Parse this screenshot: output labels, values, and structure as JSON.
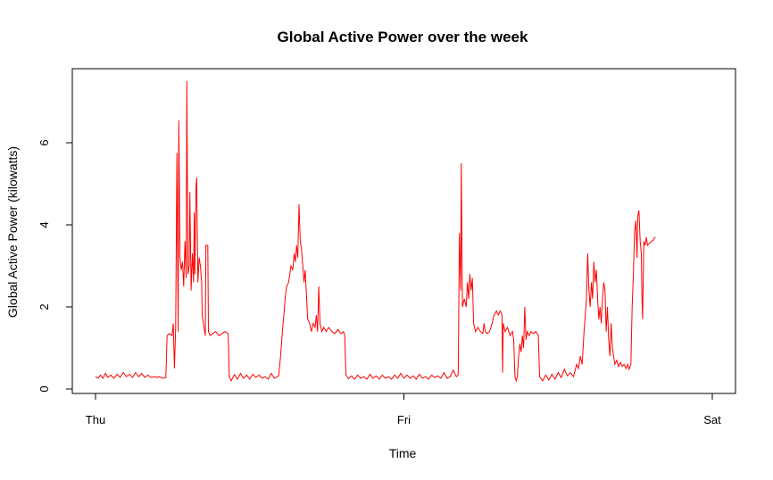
{
  "chart_data": {
    "type": "line",
    "title": "Global Active Power over the week",
    "xlabel": "Time",
    "ylabel": "Global Active Power (kilowatts)",
    "xlim": [
      0,
      2
    ],
    "ylim": [
      -0.2,
      7.7
    ],
    "x_ticks": [
      {
        "value": 0,
        "label": "Thu"
      },
      {
        "value": 1,
        "label": "Fri"
      },
      {
        "value": 2,
        "label": "Sat"
      }
    ],
    "y_ticks": [
      {
        "value": 0,
        "label": "0"
      },
      {
        "value": 2,
        "label": "2"
      },
      {
        "value": 4,
        "label": "4"
      },
      {
        "value": 6,
        "label": "6"
      }
    ],
    "grid": false,
    "legend": "none",
    "series": [
      {
        "color": "#ff0000",
        "points": [
          [
            0.0,
            0.3
          ],
          [
            0.008,
            0.26
          ],
          [
            0.016,
            0.34
          ],
          [
            0.024,
            0.26
          ],
          [
            0.032,
            0.38
          ],
          [
            0.04,
            0.28
          ],
          [
            0.05,
            0.34
          ],
          [
            0.06,
            0.26
          ],
          [
            0.07,
            0.36
          ],
          [
            0.08,
            0.28
          ],
          [
            0.09,
            0.4
          ],
          [
            0.1,
            0.3
          ],
          [
            0.11,
            0.36
          ],
          [
            0.12,
            0.28
          ],
          [
            0.13,
            0.4
          ],
          [
            0.14,
            0.3
          ],
          [
            0.15,
            0.38
          ],
          [
            0.16,
            0.28
          ],
          [
            0.17,
            0.34
          ],
          [
            0.18,
            0.28
          ],
          [
            0.19,
            0.3
          ],
          [
            0.2,
            0.28
          ],
          [
            0.205,
            0.3
          ],
          [
            0.212,
            0.28
          ],
          [
            0.22,
            0.26
          ],
          [
            0.228,
            0.28
          ],
          [
            0.232,
            1.3
          ],
          [
            0.24,
            1.35
          ],
          [
            0.248,
            1.3
          ],
          [
            0.252,
            1.6
          ],
          [
            0.256,
            0.5
          ],
          [
            0.26,
            1.5
          ],
          [
            0.264,
            5.75
          ],
          [
            0.268,
            1.4
          ],
          [
            0.27,
            6.55
          ],
          [
            0.274,
            3.2
          ],
          [
            0.278,
            2.9
          ],
          [
            0.282,
            3.1
          ],
          [
            0.286,
            2.5
          ],
          [
            0.29,
            3.6
          ],
          [
            0.294,
            2.7
          ],
          [
            0.296,
            7.5
          ],
          [
            0.3,
            2.8
          ],
          [
            0.304,
            3.0
          ],
          [
            0.306,
            4.8
          ],
          [
            0.31,
            2.4
          ],
          [
            0.314,
            3.3
          ],
          [
            0.318,
            2.6
          ],
          [
            0.32,
            4.3
          ],
          [
            0.322,
            2.8
          ],
          [
            0.326,
            4.95
          ],
          [
            0.328,
            5.15
          ],
          [
            0.332,
            2.6
          ],
          [
            0.336,
            3.2
          ],
          [
            0.34,
            3.0
          ],
          [
            0.344,
            2.6
          ],
          [
            0.346,
            1.8
          ],
          [
            0.35,
            1.6
          ],
          [
            0.354,
            1.4
          ],
          [
            0.356,
            1.3
          ],
          [
            0.358,
            3.5
          ],
          [
            0.364,
            3.5
          ],
          [
            0.366,
            1.4
          ],
          [
            0.372,
            1.3
          ],
          [
            0.38,
            1.35
          ],
          [
            0.39,
            1.4
          ],
          [
            0.4,
            1.3
          ],
          [
            0.41,
            1.35
          ],
          [
            0.42,
            1.4
          ],
          [
            0.43,
            1.35
          ],
          [
            0.434,
            0.3
          ],
          [
            0.44,
            0.2
          ],
          [
            0.45,
            0.35
          ],
          [
            0.46,
            0.24
          ],
          [
            0.47,
            0.38
          ],
          [
            0.48,
            0.26
          ],
          [
            0.49,
            0.34
          ],
          [
            0.5,
            0.24
          ],
          [
            0.51,
            0.36
          ],
          [
            0.52,
            0.28
          ],
          [
            0.53,
            0.34
          ],
          [
            0.54,
            0.26
          ],
          [
            0.55,
            0.3
          ],
          [
            0.56,
            0.24
          ],
          [
            0.57,
            0.38
          ],
          [
            0.58,
            0.26
          ],
          [
            0.594,
            0.32
          ],
          [
            0.6,
            0.8
          ],
          [
            0.604,
            1.2
          ],
          [
            0.608,
            1.6
          ],
          [
            0.612,
            1.9
          ],
          [
            0.616,
            2.3
          ],
          [
            0.62,
            2.5
          ],
          [
            0.626,
            2.6
          ],
          [
            0.63,
            2.8
          ],
          [
            0.634,
            3.0
          ],
          [
            0.64,
            2.9
          ],
          [
            0.644,
            3.3
          ],
          [
            0.648,
            3.1
          ],
          [
            0.652,
            3.5
          ],
          [
            0.656,
            3.2
          ],
          [
            0.66,
            4.5
          ],
          [
            0.664,
            3.6
          ],
          [
            0.668,
            3.4
          ],
          [
            0.672,
            3.0
          ],
          [
            0.676,
            2.6
          ],
          [
            0.68,
            2.9
          ],
          [
            0.684,
            2.3
          ],
          [
            0.688,
            1.7
          ],
          [
            0.694,
            1.6
          ],
          [
            0.7,
            1.4
          ],
          [
            0.706,
            1.6
          ],
          [
            0.712,
            1.5
          ],
          [
            0.716,
            1.8
          ],
          [
            0.72,
            1.4
          ],
          [
            0.724,
            2.5
          ],
          [
            0.728,
            1.6
          ],
          [
            0.734,
            1.4
          ],
          [
            0.74,
            1.5
          ],
          [
            0.748,
            1.4
          ],
          [
            0.756,
            1.5
          ],
          [
            0.766,
            1.4
          ],
          [
            0.776,
            1.35
          ],
          [
            0.786,
            1.45
          ],
          [
            0.796,
            1.35
          ],
          [
            0.804,
            1.4
          ],
          [
            0.808,
            1.3
          ],
          [
            0.812,
            0.35
          ],
          [
            0.82,
            0.25
          ],
          [
            0.83,
            0.32
          ],
          [
            0.84,
            0.24
          ],
          [
            0.85,
            0.34
          ],
          [
            0.86,
            0.26
          ],
          [
            0.87,
            0.3
          ],
          [
            0.88,
            0.24
          ],
          [
            0.89,
            0.36
          ],
          [
            0.9,
            0.26
          ],
          [
            0.91,
            0.32
          ],
          [
            0.92,
            0.24
          ],
          [
            0.93,
            0.34
          ],
          [
            0.94,
            0.26
          ],
          [
            0.95,
            0.3
          ],
          [
            0.96,
            0.24
          ],
          [
            0.97,
            0.34
          ],
          [
            0.98,
            0.26
          ],
          [
            0.99,
            0.38
          ],
          [
            1.0,
            0.26
          ],
          [
            1.01,
            0.34
          ],
          [
            1.02,
            0.26
          ],
          [
            1.03,
            0.32
          ],
          [
            1.04,
            0.24
          ],
          [
            1.05,
            0.36
          ],
          [
            1.06,
            0.26
          ],
          [
            1.07,
            0.3
          ],
          [
            1.08,
            0.24
          ],
          [
            1.09,
            0.34
          ],
          [
            1.1,
            0.28
          ],
          [
            1.11,
            0.32
          ],
          [
            1.12,
            0.26
          ],
          [
            1.13,
            0.4
          ],
          [
            1.14,
            0.26
          ],
          [
            1.15,
            0.3
          ],
          [
            1.16,
            0.46
          ],
          [
            1.17,
            0.3
          ],
          [
            1.176,
            0.34
          ],
          [
            1.18,
            3.8
          ],
          [
            1.184,
            2.4
          ],
          [
            1.186,
            5.5
          ],
          [
            1.19,
            2.0
          ],
          [
            1.196,
            2.2
          ],
          [
            1.202,
            2.0
          ],
          [
            1.206,
            2.6
          ],
          [
            1.21,
            2.2
          ],
          [
            1.214,
            2.8
          ],
          [
            1.218,
            2.4
          ],
          [
            1.222,
            2.7
          ],
          [
            1.226,
            1.6
          ],
          [
            1.232,
            1.4
          ],
          [
            1.24,
            1.5
          ],
          [
            1.248,
            1.4
          ],
          [
            1.256,
            1.35
          ],
          [
            1.26,
            1.6
          ],
          [
            1.264,
            1.4
          ],
          [
            1.27,
            1.35
          ],
          [
            1.278,
            1.4
          ],
          [
            1.286,
            1.6
          ],
          [
            1.292,
            1.8
          ],
          [
            1.3,
            1.9
          ],
          [
            1.306,
            1.8
          ],
          [
            1.312,
            1.9
          ],
          [
            1.318,
            1.8
          ],
          [
            1.32,
            0.4
          ],
          [
            1.322,
            1.6
          ],
          [
            1.328,
            1.4
          ],
          [
            1.336,
            1.5
          ],
          [
            1.344,
            1.3
          ],
          [
            1.352,
            1.4
          ],
          [
            1.356,
            1.2
          ],
          [
            1.36,
            0.3
          ],
          [
            1.364,
            0.2
          ],
          [
            1.368,
            0.3
          ],
          [
            1.372,
            0.8
          ],
          [
            1.376,
            1.1
          ],
          [
            1.38,
            0.9
          ],
          [
            1.384,
            1.3
          ],
          [
            1.388,
            1.0
          ],
          [
            1.392,
            2.0
          ],
          [
            1.396,
            1.2
          ],
          [
            1.4,
            1.4
          ],
          [
            1.406,
            1.3
          ],
          [
            1.412,
            1.4
          ],
          [
            1.42,
            1.35
          ],
          [
            1.428,
            1.4
          ],
          [
            1.436,
            1.3
          ],
          [
            1.44,
            0.3
          ],
          [
            1.45,
            0.2
          ],
          [
            1.46,
            0.34
          ],
          [
            1.47,
            0.22
          ],
          [
            1.48,
            0.36
          ],
          [
            1.49,
            0.24
          ],
          [
            1.5,
            0.4
          ],
          [
            1.51,
            0.28
          ],
          [
            1.52,
            0.48
          ],
          [
            1.53,
            0.32
          ],
          [
            1.54,
            0.4
          ],
          [
            1.55,
            0.3
          ],
          [
            1.56,
            0.6
          ],
          [
            1.566,
            0.5
          ],
          [
            1.572,
            0.8
          ],
          [
            1.578,
            0.6
          ],
          [
            1.584,
            1.4
          ],
          [
            1.588,
            1.8
          ],
          [
            1.592,
            2.2
          ],
          [
            1.596,
            3.3
          ],
          [
            1.6,
            2.4
          ],
          [
            1.604,
            2.0
          ],
          [
            1.608,
            2.6
          ],
          [
            1.612,
            2.2
          ],
          [
            1.616,
            3.1
          ],
          [
            1.62,
            2.6
          ],
          [
            1.624,
            2.9
          ],
          [
            1.628,
            2.2
          ],
          [
            1.632,
            1.7
          ],
          [
            1.636,
            2.0
          ],
          [
            1.64,
            1.6
          ],
          [
            1.644,
            2.2
          ],
          [
            1.648,
            2.6
          ],
          [
            1.652,
            2.4
          ],
          [
            1.656,
            1.4
          ],
          [
            1.66,
            2.0
          ],
          [
            1.664,
            1.2
          ],
          [
            1.668,
            0.8
          ],
          [
            1.672,
            1.6
          ],
          [
            1.676,
            1.0
          ],
          [
            1.68,
            0.8
          ],
          [
            1.684,
            0.6
          ],
          [
            1.69,
            0.7
          ],
          [
            1.696,
            0.55
          ],
          [
            1.702,
            0.65
          ],
          [
            1.708,
            0.55
          ],
          [
            1.714,
            0.6
          ],
          [
            1.72,
            0.5
          ],
          [
            1.726,
            0.6
          ],
          [
            1.73,
            0.48
          ],
          [
            1.736,
            0.6
          ],
          [
            1.74,
            2.0
          ],
          [
            1.744,
            2.8
          ],
          [
            1.748,
            3.8
          ],
          [
            1.752,
            4.1
          ],
          [
            1.756,
            3.2
          ],
          [
            1.758,
            4.2
          ],
          [
            1.762,
            4.35
          ],
          [
            1.766,
            3.6
          ],
          [
            1.77,
            3.3
          ],
          [
            1.772,
            2.2
          ],
          [
            1.774,
            1.7
          ],
          [
            1.778,
            3.6
          ],
          [
            1.782,
            3.5
          ],
          [
            1.786,
            3.7
          ],
          [
            1.79,
            3.5
          ],
          [
            1.796,
            3.55
          ],
          [
            1.802,
            3.6
          ],
          [
            1.808,
            3.62
          ],
          [
            1.812,
            3.68
          ],
          [
            1.816,
            3.7
          ]
        ]
      }
    ]
  }
}
